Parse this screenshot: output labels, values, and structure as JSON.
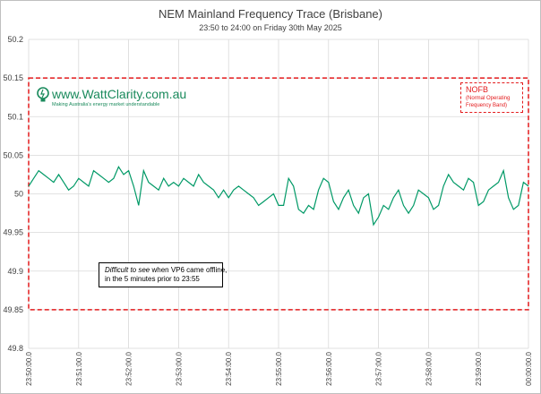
{
  "chart_data": {
    "type": "line",
    "title": "NEM Mainland Frequency Trace (Brisbane)",
    "subtitle": "23:50 to 24:00 on Friday 30th May 2025",
    "ylim": [
      49.8,
      50.2
    ],
    "yticks": [
      "50.2",
      "50.15",
      "50.1",
      "50.05",
      "50",
      "49.95",
      "49.9",
      "49.85",
      "49.8"
    ],
    "xlim_minutes": [
      0,
      10
    ],
    "xticks": [
      "23:50:00.0",
      "23:51:00.0",
      "23:52:00.0",
      "23:53:00.0",
      "23:54:00.0",
      "23:55:00.0",
      "23:56:00.0",
      "23:57:00.0",
      "23:58:00.0",
      "23:59:00.0",
      "00:00:00.0"
    ],
    "grid": true,
    "series": [
      {
        "color": "#009966",
        "x_minutes": [
          0,
          0.1,
          0.2,
          0.3,
          0.4,
          0.5,
          0.6,
          0.7,
          0.8,
          0.9,
          1.0,
          1.1,
          1.2,
          1.3,
          1.4,
          1.5,
          1.6,
          1.7,
          1.8,
          1.9,
          2.0,
          2.1,
          2.2,
          2.3,
          2.4,
          2.5,
          2.6,
          2.7,
          2.8,
          2.9,
          3.0,
          3.1,
          3.2,
          3.3,
          3.4,
          3.5,
          3.6,
          3.7,
          3.8,
          3.9,
          4.0,
          4.1,
          4.2,
          4.3,
          4.4,
          4.5,
          4.6,
          4.7,
          4.8,
          4.9,
          5.0,
          5.1,
          5.2,
          5.3,
          5.4,
          5.5,
          5.6,
          5.7,
          5.8,
          5.9,
          6.0,
          6.1,
          6.2,
          6.3,
          6.4,
          6.5,
          6.6,
          6.7,
          6.8,
          6.9,
          7.0,
          7.1,
          7.2,
          7.3,
          7.4,
          7.5,
          7.6,
          7.7,
          7.8,
          7.9,
          8.0,
          8.1,
          8.2,
          8.3,
          8.4,
          8.5,
          8.6,
          8.7,
          8.8,
          8.9,
          9.0,
          9.1,
          9.2,
          9.3,
          9.4,
          9.5,
          9.6,
          9.7,
          9.8,
          9.9,
          10.0
        ],
        "values": [
          50.01,
          50.02,
          50.03,
          50.025,
          50.02,
          50.015,
          50.025,
          50.015,
          50.005,
          50.01,
          50.02,
          50.015,
          50.01,
          50.03,
          50.025,
          50.02,
          50.015,
          50.02,
          50.035,
          50.025,
          50.03,
          50.01,
          49.985,
          50.03,
          50.015,
          50.01,
          50.005,
          50.02,
          50.01,
          50.015,
          50.01,
          50.02,
          50.015,
          50.01,
          50.025,
          50.015,
          50.01,
          50.005,
          49.995,
          50.005,
          49.995,
          50.005,
          50.01,
          50.005,
          50.0,
          49.995,
          49.985,
          49.99,
          49.995,
          50.0,
          49.985,
          49.985,
          50.02,
          50.01,
          49.98,
          49.975,
          49.985,
          49.98,
          50.005,
          50.02,
          50.015,
          49.99,
          49.98,
          49.995,
          50.005,
          49.985,
          49.975,
          49.995,
          50.0,
          49.96,
          49.97,
          49.985,
          49.98,
          49.995,
          50.005,
          49.985,
          49.975,
          49.985,
          50.005,
          50.0,
          49.995,
          49.98,
          49.985,
          50.01,
          50.025,
          50.015,
          50.01,
          50.005,
          50.02,
          50.015,
          49.985,
          49.99,
          50.005,
          50.01,
          50.015,
          50.03,
          49.995,
          49.98,
          49.985,
          50.015,
          50.01
        ]
      }
    ],
    "annotations": {
      "band_label": "NOFB",
      "band_sublabel": "(Normal Operating Frequency Band)",
      "band_range": [
        49.85,
        50.15
      ],
      "note_italic": "Difficult to see",
      "note_rest": " when VP6 came offline,",
      "note_line2": "in the 5 minutes prior to 23:55"
    }
  },
  "logo": {
    "text": "www.WattClarity.com.au",
    "tagline": "Making Australia's energy market understandable",
    "color": "#1a8a5c"
  },
  "colors": {
    "line": "#009966",
    "band": "#e31a1c",
    "grid": "#d9d9d9"
  }
}
